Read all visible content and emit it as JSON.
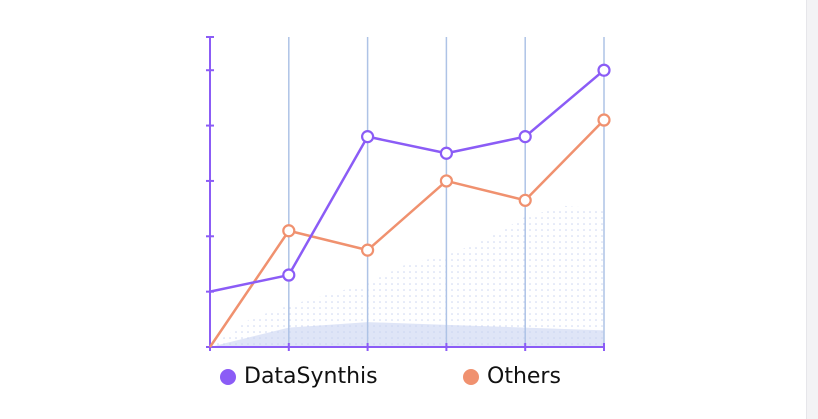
{
  "chart_data": {
    "type": "line",
    "title": "",
    "xlabel": "",
    "ylabel": "",
    "x": [
      0,
      1,
      2,
      3,
      4,
      5
    ],
    "ylim": [
      0,
      5.6
    ],
    "yticks": [
      0,
      1,
      2,
      3,
      4,
      5,
      5.6
    ],
    "grid": "vertical",
    "legend_position": "bottom",
    "series": [
      {
        "name": "DataSynthis",
        "color": "#8b5cf6",
        "values": [
          1.0,
          1.3,
          3.8,
          3.5,
          3.8,
          5.0
        ]
      },
      {
        "name": "Others",
        "color": "#f0916f",
        "values": [
          0.0,
          2.1,
          1.75,
          3.0,
          2.65,
          4.1
        ]
      }
    ]
  }
}
